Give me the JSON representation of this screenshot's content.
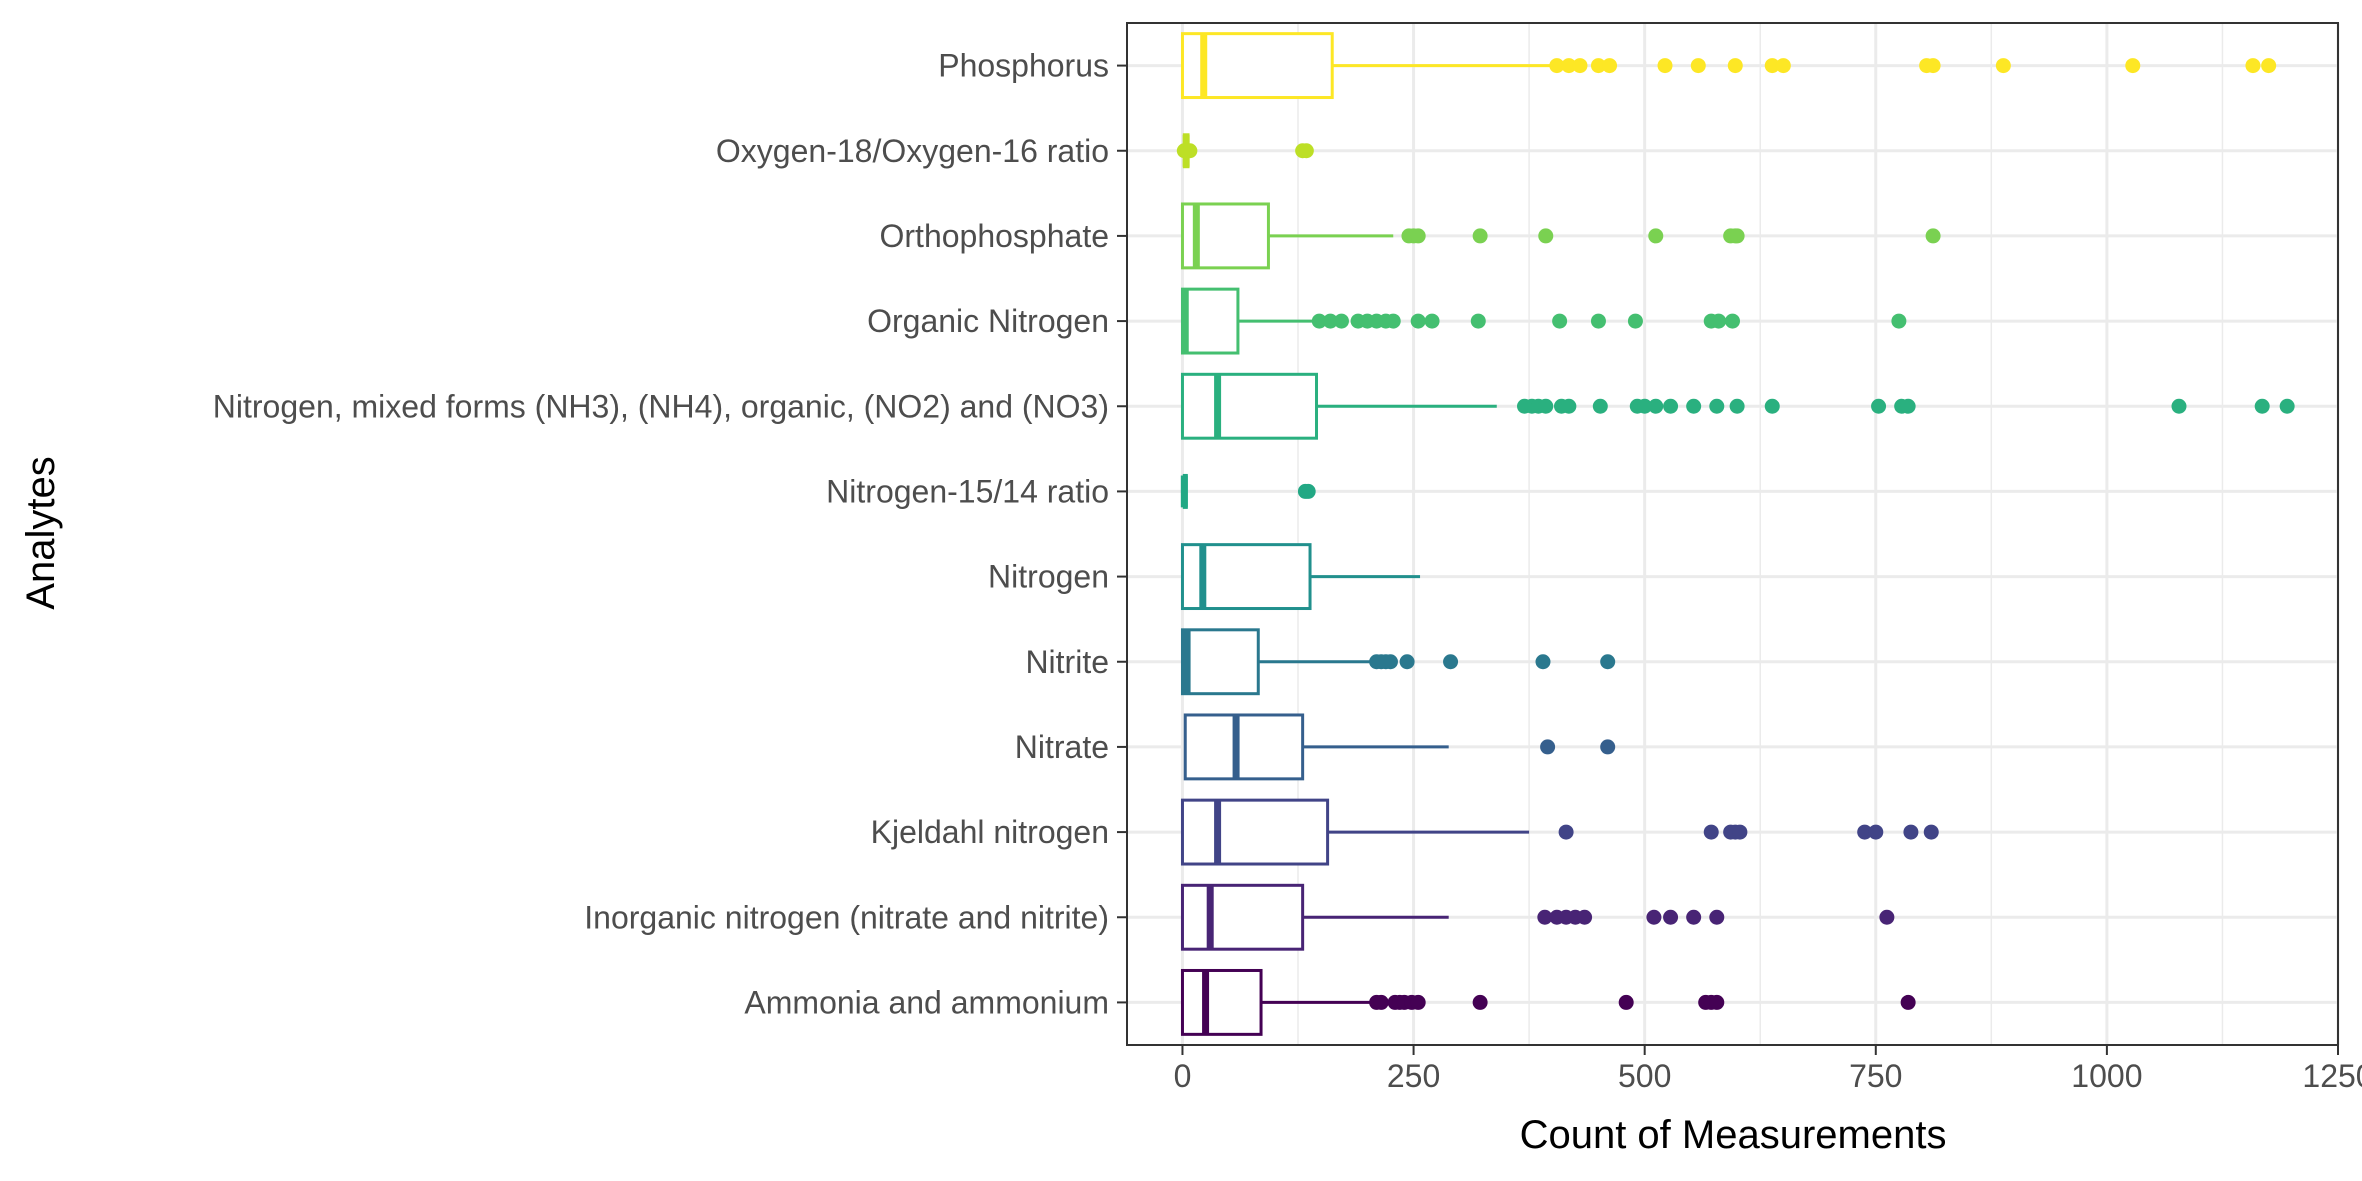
{
  "chart_data": {
    "type": "boxplot",
    "orientation": "horizontal",
    "xlabel": "Count of Measurements",
    "ylabel": "Analytes",
    "xlim": [
      -60,
      1250
    ],
    "xticks": [
      0,
      250,
      500,
      750,
      1000,
      1250
    ],
    "xtick_labels": [
      "0",
      "250",
      "500",
      "750",
      "1000",
      "1250"
    ],
    "grid": true,
    "legend": "none",
    "categories": [
      {
        "name": "Ammonia and ammonium",
        "color": "#440154",
        "q1": 0,
        "median": 25,
        "q3": 85,
        "whisker_low": 0,
        "whisker_high": 210,
        "outliers": [
          210,
          215,
          230,
          235,
          240,
          248,
          255,
          322,
          480,
          566,
          572,
          578,
          785
        ]
      },
      {
        "name": "Inorganic nitrogen (nitrate and nitrite)",
        "color": "#482475",
        "q1": 0,
        "median": 30,
        "q3": 130,
        "whisker_low": 0,
        "whisker_high": 288,
        "outliers": [
          392,
          405,
          415,
          425,
          435,
          510,
          528,
          553,
          578,
          762
        ]
      },
      {
        "name": "Kjeldahl nitrogen",
        "color": "#414487",
        "q1": 0,
        "median": 38,
        "q3": 157,
        "whisker_low": 0,
        "whisker_high": 375,
        "outliers": [
          415,
          572,
          593,
          598,
          603,
          738,
          750,
          788,
          810
        ]
      },
      {
        "name": "Nitrate",
        "color": "#355f8d",
        "q1": 3,
        "median": 58,
        "q3": 130,
        "whisker_low": 3,
        "whisker_high": 288,
        "outliers": [
          395,
          460
        ]
      },
      {
        "name": "Nitrite",
        "color": "#2a788e",
        "q1": 0,
        "median": 5,
        "q3": 82,
        "whisker_low": 0,
        "whisker_high": 208,
        "outliers": [
          210,
          215,
          220,
          225,
          243,
          290,
          390,
          460
        ]
      },
      {
        "name": "Nitrogen",
        "color": "#21908d",
        "q1": 0,
        "median": 22,
        "q3": 138,
        "whisker_low": 0,
        "whisker_high": 257,
        "outliers": []
      },
      {
        "name": "Nitrogen-15/14 ratio",
        "color": "#22a884",
        "q1": 2,
        "median": 2,
        "q3": 4,
        "whisker_low": 2,
        "whisker_high": 4,
        "outliers": [
          133,
          136
        ]
      },
      {
        "name": "Nitrogen, mixed forms (NH3), (NH4), organic, (NO2) and (NO3)",
        "color": "#2ab07f",
        "q1": 0,
        "median": 38,
        "q3": 145,
        "whisker_low": 0,
        "whisker_high": 340,
        "outliers": [
          370,
          378,
          385,
          393,
          410,
          418,
          452,
          492,
          500,
          512,
          528,
          553,
          578,
          600,
          638,
          753,
          778,
          785,
          1078,
          1168,
          1195
        ]
      },
      {
        "name": "Organic Nitrogen",
        "color": "#44bf70",
        "q1": 0,
        "median": 3,
        "q3": 60,
        "whisker_low": 0,
        "whisker_high": 142,
        "outliers": [
          148,
          160,
          172,
          190,
          200,
          210,
          220,
          228,
          255,
          270,
          320,
          408,
          450,
          490,
          572,
          580,
          595,
          775
        ]
      },
      {
        "name": "Orthophosphate",
        "color": "#7ad151",
        "q1": 0,
        "median": 15,
        "q3": 93,
        "whisker_low": 0,
        "whisker_high": 228,
        "outliers": [
          245,
          250,
          255,
          322,
          393,
          512,
          593,
          598,
          600,
          812
        ]
      },
      {
        "name": "Oxygen-18/Oxygen-16 ratio",
        "color": "#bddf26",
        "q1": 2,
        "median": 4,
        "q3": 6,
        "whisker_low": 2,
        "whisker_high": 6,
        "outliers": [
          2,
          5,
          8,
          130,
          134
        ]
      },
      {
        "name": "Phosphorus",
        "color": "#fde725",
        "q1": 0,
        "median": 23,
        "q3": 162,
        "whisker_low": 0,
        "whisker_high": 400,
        "outliers": [
          405,
          418,
          430,
          450,
          462,
          522,
          558,
          598,
          638,
          650,
          805,
          812,
          888,
          1028,
          1158,
          1175
        ]
      }
    ]
  }
}
